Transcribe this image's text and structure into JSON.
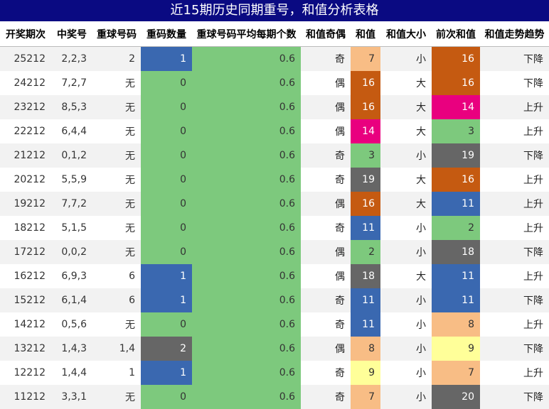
{
  "title": "近15期历史同期重号，和值分析表格",
  "columns": [
    "开奖期次",
    "中奖号",
    "重球号码",
    "重码数量",
    "重球号码平均每期个数",
    "和值奇偶",
    "和值",
    "和值大小",
    "前次和值",
    "和值走势趋势"
  ],
  "colors": {
    "orange": "#c55a11",
    "peach": "#f8bd85",
    "magenta": "#e9007f",
    "green": "#7dc97d",
    "gray": "#666666",
    "blue": "#3a68b0",
    "yellow": "#ffff99"
  },
  "rows": [
    {
      "period": "25212",
      "numbers": "2,2,3",
      "repeat": "2",
      "count": "1",
      "avg": "0.6",
      "oe": "奇",
      "sum": "7",
      "sum_color": "peach",
      "bs": "小",
      "prev": "16",
      "prev_color": "orange",
      "trend": "下降"
    },
    {
      "period": "24212",
      "numbers": "7,2,7",
      "repeat": "无",
      "count": "0",
      "avg": "0.6",
      "oe": "偶",
      "sum": "16",
      "sum_color": "orange",
      "bs": "大",
      "prev": "16",
      "prev_color": "orange",
      "trend": "下降"
    },
    {
      "period": "23212",
      "numbers": "8,5,3",
      "repeat": "无",
      "count": "0",
      "avg": "0.6",
      "oe": "偶",
      "sum": "16",
      "sum_color": "orange",
      "bs": "大",
      "prev": "14",
      "prev_color": "magenta",
      "trend": "上升"
    },
    {
      "period": "22212",
      "numbers": "6,4,4",
      "repeat": "无",
      "count": "0",
      "avg": "0.6",
      "oe": "偶",
      "sum": "14",
      "sum_color": "magenta",
      "bs": "大",
      "prev": "3",
      "prev_color": "green",
      "trend": "上升"
    },
    {
      "period": "21212",
      "numbers": "0,1,2",
      "repeat": "无",
      "count": "0",
      "avg": "0.6",
      "oe": "奇",
      "sum": "3",
      "sum_color": "green",
      "bs": "小",
      "prev": "19",
      "prev_color": "gray",
      "trend": "下降"
    },
    {
      "period": "20212",
      "numbers": "5,5,9",
      "repeat": "无",
      "count": "0",
      "avg": "0.6",
      "oe": "奇",
      "sum": "19",
      "sum_color": "gray",
      "bs": "大",
      "prev": "16",
      "prev_color": "orange",
      "trend": "上升"
    },
    {
      "period": "19212",
      "numbers": "7,7,2",
      "repeat": "无",
      "count": "0",
      "avg": "0.6",
      "oe": "偶",
      "sum": "16",
      "sum_color": "orange",
      "bs": "大",
      "prev": "11",
      "prev_color": "blue",
      "trend": "上升"
    },
    {
      "period": "18212",
      "numbers": "5,1,5",
      "repeat": "无",
      "count": "0",
      "avg": "0.6",
      "oe": "奇",
      "sum": "11",
      "sum_color": "blue",
      "bs": "小",
      "prev": "2",
      "prev_color": "green",
      "trend": "上升"
    },
    {
      "period": "17212",
      "numbers": "0,0,2",
      "repeat": "无",
      "count": "0",
      "avg": "0.6",
      "oe": "偶",
      "sum": "2",
      "sum_color": "green",
      "bs": "小",
      "prev": "18",
      "prev_color": "gray",
      "trend": "下降"
    },
    {
      "period": "16212",
      "numbers": "6,9,3",
      "repeat": "6",
      "count": "1",
      "avg": "0.6",
      "oe": "偶",
      "sum": "18",
      "sum_color": "gray",
      "bs": "大",
      "prev": "11",
      "prev_color": "blue",
      "trend": "上升"
    },
    {
      "period": "15212",
      "numbers": "6,1,4",
      "repeat": "6",
      "count": "1",
      "avg": "0.6",
      "oe": "奇",
      "sum": "11",
      "sum_color": "blue",
      "bs": "小",
      "prev": "11",
      "prev_color": "blue",
      "trend": "下降"
    },
    {
      "period": "14212",
      "numbers": "0,5,6",
      "repeat": "无",
      "count": "0",
      "avg": "0.6",
      "oe": "奇",
      "sum": "11",
      "sum_color": "blue",
      "bs": "小",
      "prev": "8",
      "prev_color": "peach",
      "trend": "上升"
    },
    {
      "period": "13212",
      "numbers": "1,4,3",
      "repeat": "1,4",
      "count": "2",
      "avg": "0.6",
      "oe": "偶",
      "sum": "8",
      "sum_color": "peach",
      "bs": "小",
      "prev": "9",
      "prev_color": "yellow",
      "trend": "下降"
    },
    {
      "period": "12212",
      "numbers": "1,4,4",
      "repeat": "1",
      "count": "1",
      "avg": "0.6",
      "oe": "奇",
      "sum": "9",
      "sum_color": "yellow",
      "bs": "小",
      "prev": "7",
      "prev_color": "peach",
      "trend": "上升"
    },
    {
      "period": "11212",
      "numbers": "3,3,1",
      "repeat": "无",
      "count": "0",
      "avg": "0.6",
      "oe": "奇",
      "sum": "7",
      "sum_color": "peach",
      "bs": "小",
      "prev": "20",
      "prev_color": "gray",
      "trend": "下降"
    }
  ]
}
